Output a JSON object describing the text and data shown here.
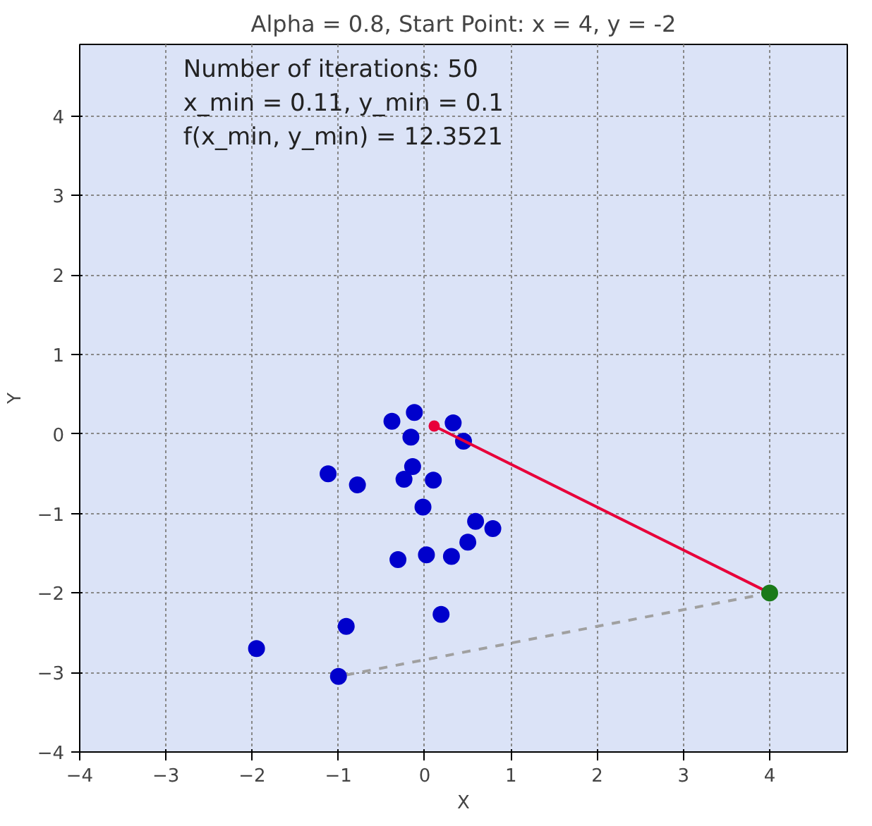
{
  "chart_data": {
    "type": "scatter",
    "title": "Alpha = 0.8, Start Point: x = 4, y = -2",
    "xlabel": "X",
    "ylabel": "Y",
    "xlim": [
      -4,
      4.9
    ],
    "ylim": [
      -4,
      4.9
    ],
    "xticks": [
      {
        "value": -4,
        "label": "−4"
      },
      {
        "value": -3,
        "label": "−3"
      },
      {
        "value": -2,
        "label": "−2"
      },
      {
        "value": -1,
        "label": "−1"
      },
      0,
      1,
      2,
      3,
      4
    ],
    "yticks": [
      {
        "value": -4,
        "label": "−4"
      },
      {
        "value": -3,
        "label": "−3"
      },
      {
        "value": -2,
        "label": "−2"
      },
      {
        "value": -1,
        "label": "−1"
      },
      0,
      1,
      2,
      3,
      4
    ],
    "grid": true,
    "annotations": [
      "Number of iterations: 50",
      "x_min = 0.11, y_min = 0.1",
      "f(x_min, y_min) = 12.3521"
    ],
    "series": [
      {
        "type": "line",
        "color": "#a0a0a0",
        "line_style": "dashed",
        "marker": "none",
        "x": [
          4,
          -1.0
        ],
        "values": [
          -2,
          -3.05
        ]
      },
      {
        "color": "#0000cc",
        "marker": "circle",
        "x": [
          -1.0,
          -1.95,
          -0.91,
          0.19,
          -0.31,
          0.02,
          0.31,
          0.5,
          0.79,
          0.59,
          -0.02,
          -1.12,
          -0.78,
          -0.24,
          0.1,
          -0.14,
          -0.16,
          0.45,
          0.33,
          -0.12,
          -0.38
        ],
        "values": [
          -3.05,
          -2.7,
          -2.42,
          -2.27,
          -1.58,
          -1.52,
          -1.54,
          -1.36,
          -1.19,
          -1.1,
          -0.92,
          -0.5,
          -0.64,
          -0.57,
          -0.58,
          -0.41,
          -0.04,
          -0.09,
          0.14,
          0.27,
          0.16
        ]
      },
      {
        "type": "line",
        "color": "#e8003a",
        "line_style": "solid",
        "marker": "circle",
        "x": [
          4,
          0.11
        ],
        "values": [
          -2,
          0.1
        ]
      },
      {
        "color": "#1a7a1a",
        "marker": "circle",
        "x": [
          4
        ],
        "values": [
          -2
        ]
      }
    ]
  }
}
